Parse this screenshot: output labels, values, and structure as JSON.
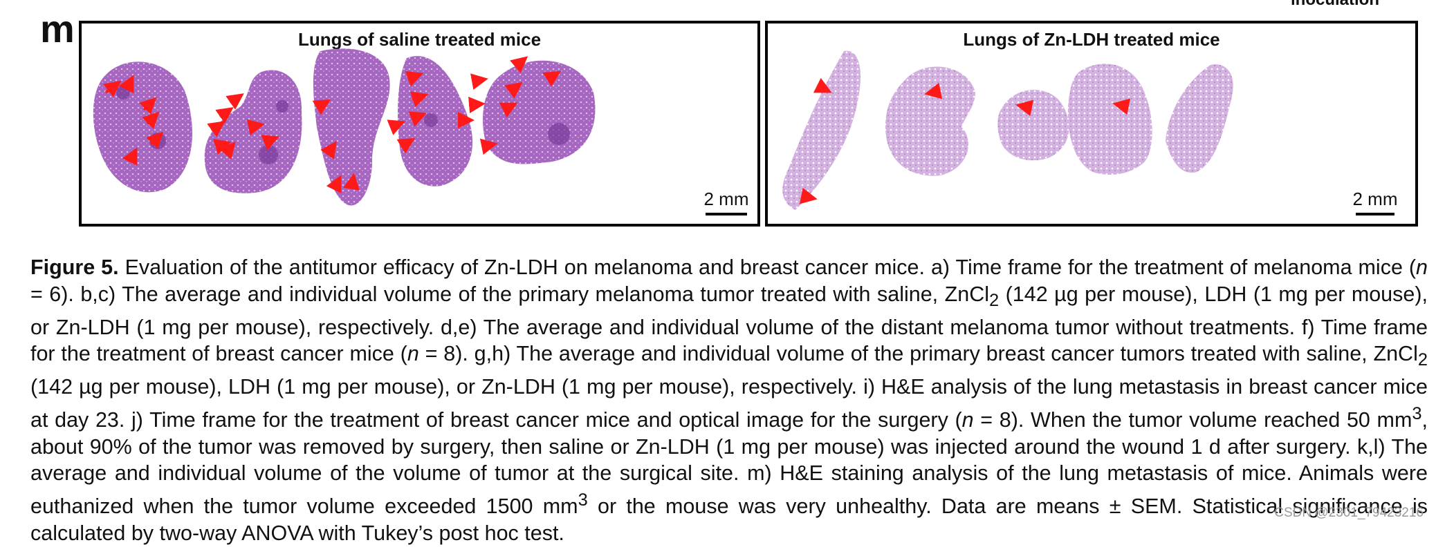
{
  "panel": {
    "letter": "m",
    "top_cut_label": "inoculation",
    "saline_title": "Lungs of saline treated mice",
    "zn_title": "Lungs of Zn-LDH treated mice",
    "scale_label": "2 mm"
  },
  "colors": {
    "tissue": "#a565c0",
    "tissue_light": "#d3b2df",
    "nodule": "#7a3a9a",
    "arrow": "#ff1a1a",
    "border": "#000000"
  },
  "caption": {
    "label": "Figure 5.",
    "s1": " Evaluation of the antitumor efficacy of Zn-LDH on melanoma and breast cancer mice. a) Time frame for the treatment of melanoma mice (",
    "n_var": "n",
    "s2": " = 6). b,c) The average and individual volume of the primary melanoma tumor treated with saline, ZnCl",
    "sub2a": "2",
    "s3": " (142 µg per mouse), LDH (1 mg per mouse), or Zn-LDH (1 mg per mouse), respectively. d,e) The average and individual volume of the distant melanoma tumor without treatments. f) Time frame for the treatment of breast cancer mice (",
    "s4": " = 8). g,h) The average and individual volume of the primary breast cancer tumors treated with saline, ZnCl",
    "sub2b": "2",
    "s5": " (142 µg per mouse), LDH (1 mg per mouse), or Zn-LDH (1 mg per mouse), respectively. i) H&E analysis of the lung metastasis in breast cancer mice at day 23. j) Time frame for the treatment of breast cancer mice and optical image for the surgery (",
    "s6": " = 8). When the tumor volume reached 50 mm",
    "sup3a": "3",
    "s7": ", about 90% of the tumor was removed by surgery, then saline or Zn-LDH (1 mg per mouse) was injected around the wound 1 d after surgery. k,l) The average and individual volume of the volume of tumor at the surgical site. m) H&E staining analysis of the lung metastasis of mice. Animals were euthanized when the tumor volume exceeded 1500 mm",
    "sup3b": "3",
    "s8": " or the mouse was very unhealthy. Data are means ± SEM. Statistical significance is calculated by two-way ANOVA with Tukey’s post hoc test."
  },
  "watermark": "CSDN @2301_79423216"
}
